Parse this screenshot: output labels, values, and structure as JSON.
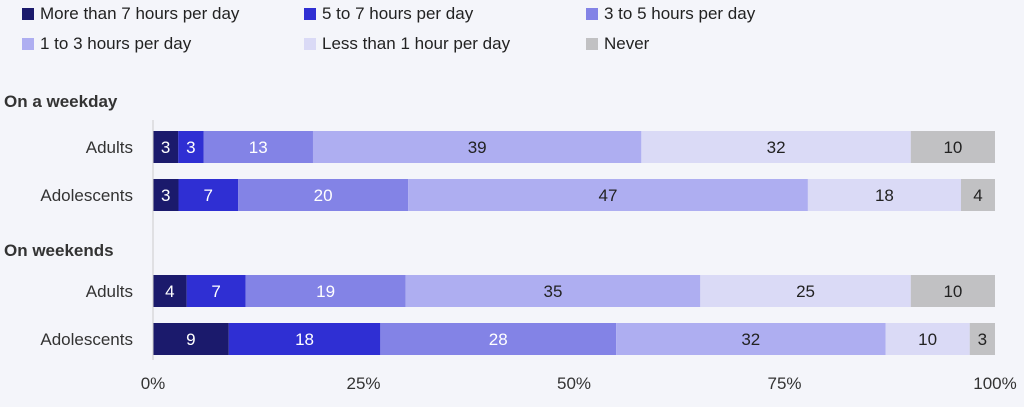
{
  "chart_data": {
    "type": "bar",
    "orientation": "horizontal-stacked-100",
    "series": [
      {
        "name": "More than 7 hours per day",
        "color": "#1b1a6c"
      },
      {
        "name": "5 to 7 hours per day",
        "color": "#2f2fd3"
      },
      {
        "name": "3 to 5 hours per day",
        "color": "#8383e6"
      },
      {
        "name": "1 to 3 hours per day",
        "color": "#aeaef1"
      },
      {
        "name": "Less than 1 hour per day",
        "color": "#dadaf6"
      },
      {
        "name": "Never",
        "color": "#c1c1c3"
      }
    ],
    "groups": [
      {
        "title": "On a weekday",
        "rows": [
          {
            "label": "Adults",
            "values": [
              3,
              3,
              13,
              39,
              32,
              10
            ]
          },
          {
            "label": "Adolescents",
            "values": [
              3,
              7,
              20,
              47,
              18,
              4
            ]
          }
        ]
      },
      {
        "title": "On weekends",
        "rows": [
          {
            "label": "Adults",
            "values": [
              4,
              7,
              19,
              35,
              25,
              10
            ]
          },
          {
            "label": "Adolescents",
            "values": [
              9,
              18,
              28,
              32,
              10,
              3
            ]
          }
        ]
      }
    ],
    "xlim": [
      0,
      100
    ],
    "xticks": [
      "0%",
      "25%",
      "50%",
      "75%",
      "100%"
    ],
    "legend_position": "top"
  }
}
